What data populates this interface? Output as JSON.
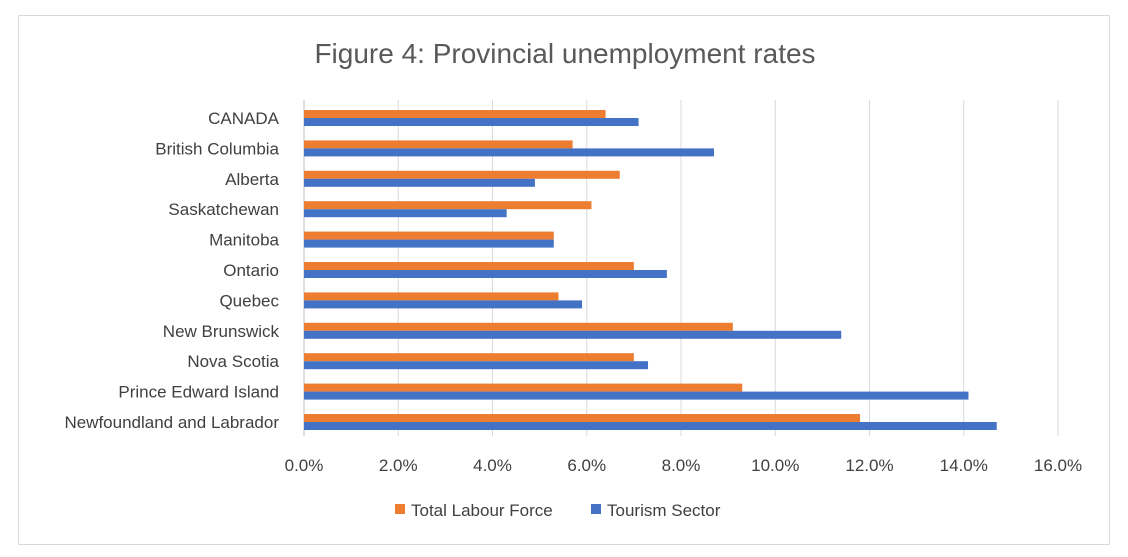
{
  "chart_data": {
    "type": "bar",
    "orientation": "horizontal",
    "title": "Figure 4: Provincial unemployment rates",
    "categories": [
      "CANADA",
      "British Columbia",
      "Alberta",
      "Saskatchewan",
      "Manitoba",
      "Ontario",
      "Quebec",
      "New Brunswick",
      "Nova Scotia",
      "Prince Edward Island",
      "Newfoundland and Labrador"
    ],
    "series": [
      {
        "name": "Total Labour Force",
        "color": "#ED7D31",
        "values": [
          6.4,
          5.7,
          6.7,
          6.1,
          5.3,
          7.0,
          5.4,
          9.1,
          7.0,
          9.3,
          11.8
        ]
      },
      {
        "name": "Tourism Sector",
        "color": "#4472C4",
        "values": [
          7.1,
          8.7,
          4.9,
          4.3,
          5.3,
          7.7,
          5.9,
          11.4,
          7.3,
          14.1,
          14.7
        ]
      }
    ],
    "xlim": [
      0,
      16
    ],
    "xticks": [
      "0.0%",
      "2.0%",
      "4.0%",
      "6.0%",
      "8.0%",
      "10.0%",
      "12.0%",
      "14.0%",
      "16.0%"
    ],
    "grid": true,
    "legend_position": "bottom"
  }
}
